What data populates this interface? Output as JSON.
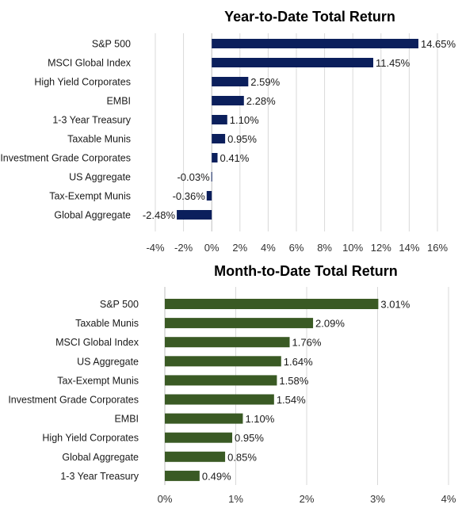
{
  "chart_data": [
    {
      "type": "bar",
      "orientation": "horizontal",
      "title": "Year-to-Date Total Return",
      "categories": [
        "S&P 500",
        "MSCI Global Index",
        "High Yield Corporates",
        "EMBI",
        "1-3 Year Treasury",
        "Taxable Munis",
        "Investment Grade Corporates",
        "US Aggregate",
        "Tax-Exempt Munis",
        "Global Aggregate"
      ],
      "values": [
        14.65,
        11.45,
        2.59,
        2.28,
        1.1,
        0.95,
        0.41,
        -0.03,
        -0.36,
        -2.48
      ],
      "data_labels": [
        "14.65%",
        "11.45%",
        "2.59%",
        "2.28%",
        "1.10%",
        "0.95%",
        "0.41%",
        "-0.03%",
        "-0.36%",
        "-2.48%"
      ],
      "xlim": [
        -4,
        16
      ],
      "xticks": [
        "-4%",
        "-2%",
        "0%",
        "2%",
        "4%",
        "6%",
        "8%",
        "10%",
        "12%",
        "14%",
        "16%"
      ],
      "grid": true,
      "bar_color": "#0b1f5c"
    },
    {
      "type": "bar",
      "orientation": "horizontal",
      "title": "Month-to-Date Total Return",
      "categories": [
        "S&P 500",
        "Taxable Munis",
        "MSCI Global Index",
        "US Aggregate",
        "Tax-Exempt Munis",
        "Investment Grade Corporates",
        "EMBI",
        "High Yield Corporates",
        "Global Aggregate",
        "1-3 Year Treasury"
      ],
      "values": [
        3.01,
        2.09,
        1.76,
        1.64,
        1.58,
        1.54,
        1.1,
        0.95,
        0.85,
        0.49
      ],
      "data_labels": [
        "3.01%",
        "2.09%",
        "1.76%",
        "1.64%",
        "1.58%",
        "1.54%",
        "1.10%",
        "0.95%",
        "0.85%",
        "0.49%"
      ],
      "xlim": [
        0,
        4
      ],
      "xticks": [
        "0%",
        "1%",
        "2%",
        "3%",
        "4%"
      ],
      "grid": true,
      "bar_color": "#3a5a24"
    }
  ]
}
